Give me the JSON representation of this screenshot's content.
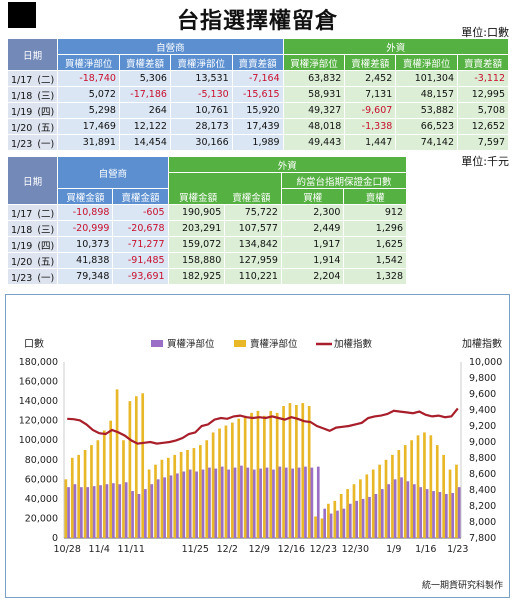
{
  "title": "台指選擇權留倉",
  "unit1": "單位:口數",
  "unit2": "單位:千元",
  "table1": {
    "date_header": "日期",
    "group1": "自營商",
    "group2": "外資",
    "cols": [
      "買權淨部位",
      "賣權差額",
      "賣權淨部位",
      "賣賣差額",
      "買權淨部位",
      "賣權差額",
      "賣權淨部位",
      "賣賣差額"
    ],
    "rows": [
      {
        "date": "1/17",
        "wd": "(二)",
        "v": [
          "-18,740",
          "5,306",
          "13,531",
          "-7,164",
          "63,832",
          "2,452",
          "101,304",
          "-3,112"
        ]
      },
      {
        "date": "1/18",
        "wd": "(三)",
        "v": [
          "5,072",
          "-17,186",
          "-5,130",
          "-15,615",
          "58,931",
          "7,131",
          "48,157",
          "12,995"
        ]
      },
      {
        "date": "1/19",
        "wd": "(四)",
        "v": [
          "5,298",
          "264",
          "10,761",
          "15,920",
          "49,327",
          "-9,607",
          "53,882",
          "5,708"
        ]
      },
      {
        "date": "1/20",
        "wd": "(五)",
        "v": [
          "17,469",
          "12,122",
          "28,173",
          "17,439",
          "48,018",
          "-1,338",
          "66,523",
          "12,652"
        ]
      },
      {
        "date": "1/23",
        "wd": "(一)",
        "v": [
          "31,891",
          "14,454",
          "30,166",
          "1,989",
          "49,443",
          "1,447",
          "74,142",
          "7,597"
        ]
      }
    ]
  },
  "table2": {
    "date_header": "日期",
    "group1": "自營商",
    "group2": "外資",
    "subgroup": "約當台指期保證金口數",
    "cols": [
      "買權金額",
      "賣權金額",
      "買權金額",
      "賣權金額",
      "買權",
      "賣權"
    ],
    "rows": [
      {
        "date": "1/17",
        "wd": "(二)",
        "v": [
          "-10,898",
          "-605",
          "190,905",
          "75,722",
          "2,300",
          "912"
        ]
      },
      {
        "date": "1/18",
        "wd": "(三)",
        "v": [
          "-20,999",
          "-20,678",
          "203,291",
          "107,577",
          "2,449",
          "1,296"
        ]
      },
      {
        "date": "1/19",
        "wd": "(四)",
        "v": [
          "10,373",
          "-71,277",
          "159,072",
          "134,842",
          "1,917",
          "1,625"
        ]
      },
      {
        "date": "1/20",
        "wd": "(五)",
        "v": [
          "41,838",
          "-91,485",
          "158,880",
          "127,959",
          "1,914",
          "1,542"
        ]
      },
      {
        "date": "1/23",
        "wd": "(一)",
        "v": [
          "79,348",
          "-93,691",
          "182,925",
          "110,221",
          "2,204",
          "1,328"
        ]
      }
    ]
  },
  "chart_data": {
    "type": "bar",
    "ylabel": "口數",
    "y2label": "加權指數",
    "ylim": [
      0,
      180000
    ],
    "y2lim": [
      7800,
      10000
    ],
    "yticks": [
      "180,000",
      "160,000",
      "140,000",
      "120,000",
      "100,000",
      "80,000",
      "60,000",
      "40,000",
      "20,000",
      "0"
    ],
    "y2ticks": [
      "10,000",
      "9,800",
      "9,600",
      "9,400",
      "9,200",
      "9,000",
      "8,800",
      "8,600",
      "8,400",
      "8,200",
      "8,000",
      "7,800"
    ],
    "x_ticks": [
      "10/28",
      "11/4",
      "11/11",
      "11/25",
      "12/2",
      "12/9",
      "12/16",
      "12/23",
      "12/30",
      "1/9",
      "1/16",
      "1/23"
    ],
    "x_tick_positions": [
      0,
      5,
      10,
      20,
      25,
      30,
      35,
      40,
      45,
      51,
      56,
      61
    ],
    "footer": "統一期貨研究科製作",
    "series": [
      {
        "name": "買權淨部位",
        "color": "#9b6fc6",
        "type": "bar",
        "values": [
          52000,
          55000,
          52000,
          52000,
          53000,
          54000,
          55000,
          56000,
          55000,
          57000,
          48000,
          45000,
          50000,
          55000,
          60000,
          62000,
          64000,
          66000,
          68000,
          70000,
          68000,
          70000,
          72000,
          71000,
          73000,
          70000,
          72000,
          74000,
          72000,
          70000,
          71000,
          72000,
          70000,
          73000,
          72000,
          71000,
          72000,
          73000,
          72000,
          73000,
          30000,
          25000,
          28000,
          30000,
          35000,
          38000,
          40000,
          42000,
          45000,
          50000,
          55000,
          60000,
          62000,
          58000,
          55000,
          52000,
          50000,
          48000,
          47000,
          45000,
          46000,
          52000
        ]
      },
      {
        "name": "賣權淨部位",
        "color": "#e8b828",
        "type": "bar",
        "values": [
          60000,
          82000,
          85000,
          90000,
          95000,
          100000,
          110000,
          120000,
          152000,
          100000,
          140000,
          145000,
          148000,
          70000,
          75000,
          80000,
          82000,
          85000,
          88000,
          90000,
          92000,
          95000,
          100000,
          108000,
          112000,
          115000,
          118000,
          122000,
          125000,
          128000,
          130000,
          125000,
          130000,
          128000,
          135000,
          138000,
          136000,
          138000,
          135000,
          22000,
          20000,
          35000,
          38000,
          45000,
          50000,
          55000,
          60000,
          65000,
          70000,
          75000,
          80000,
          85000,
          90000,
          95000,
          100000,
          105000,
          108000,
          105000,
          95000,
          85000,
          70000,
          75000
        ]
      },
      {
        "name": "加權指數",
        "color": "#a81e2a",
        "type": "line",
        "values": [
          9290,
          9285,
          9270,
          9220,
          9150,
          9110,
          9100,
          9150,
          9120,
          9080,
          9020,
          8980,
          8990,
          9000,
          8980,
          8990,
          9000,
          9020,
          9050,
          9100,
          9120,
          9200,
          9220,
          9280,
          9300,
          9290,
          9320,
          9330,
          9310,
          9300,
          9310,
          9300,
          9320,
          9300,
          9280,
          9310,
          9290,
          9260,
          9250,
          9200,
          9170,
          9140,
          9180,
          9190,
          9200,
          9220,
          9240,
          9300,
          9320,
          9330,
          9350,
          9390,
          9380,
          9370,
          9360,
          9380,
          9340,
          9320,
          9330,
          9310,
          9320,
          9420
        ]
      }
    ]
  }
}
